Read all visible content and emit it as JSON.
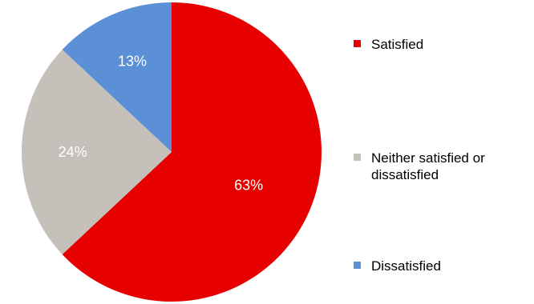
{
  "chart_data": {
    "type": "pie",
    "slices": [
      {
        "label": "Satisfied",
        "value": 63,
        "display": "63%",
        "color": "#e60000"
      },
      {
        "label": "Neither satisfied or dissatisfied",
        "value": 24,
        "display": "24%",
        "color": "#c5c0ba"
      },
      {
        "label": "Dissatisfied",
        "value": 13,
        "display": "13%",
        "color": "#5b8fd6"
      }
    ],
    "legend_position": "right",
    "start_angle_deg": 0,
    "direction": "clockwise"
  }
}
